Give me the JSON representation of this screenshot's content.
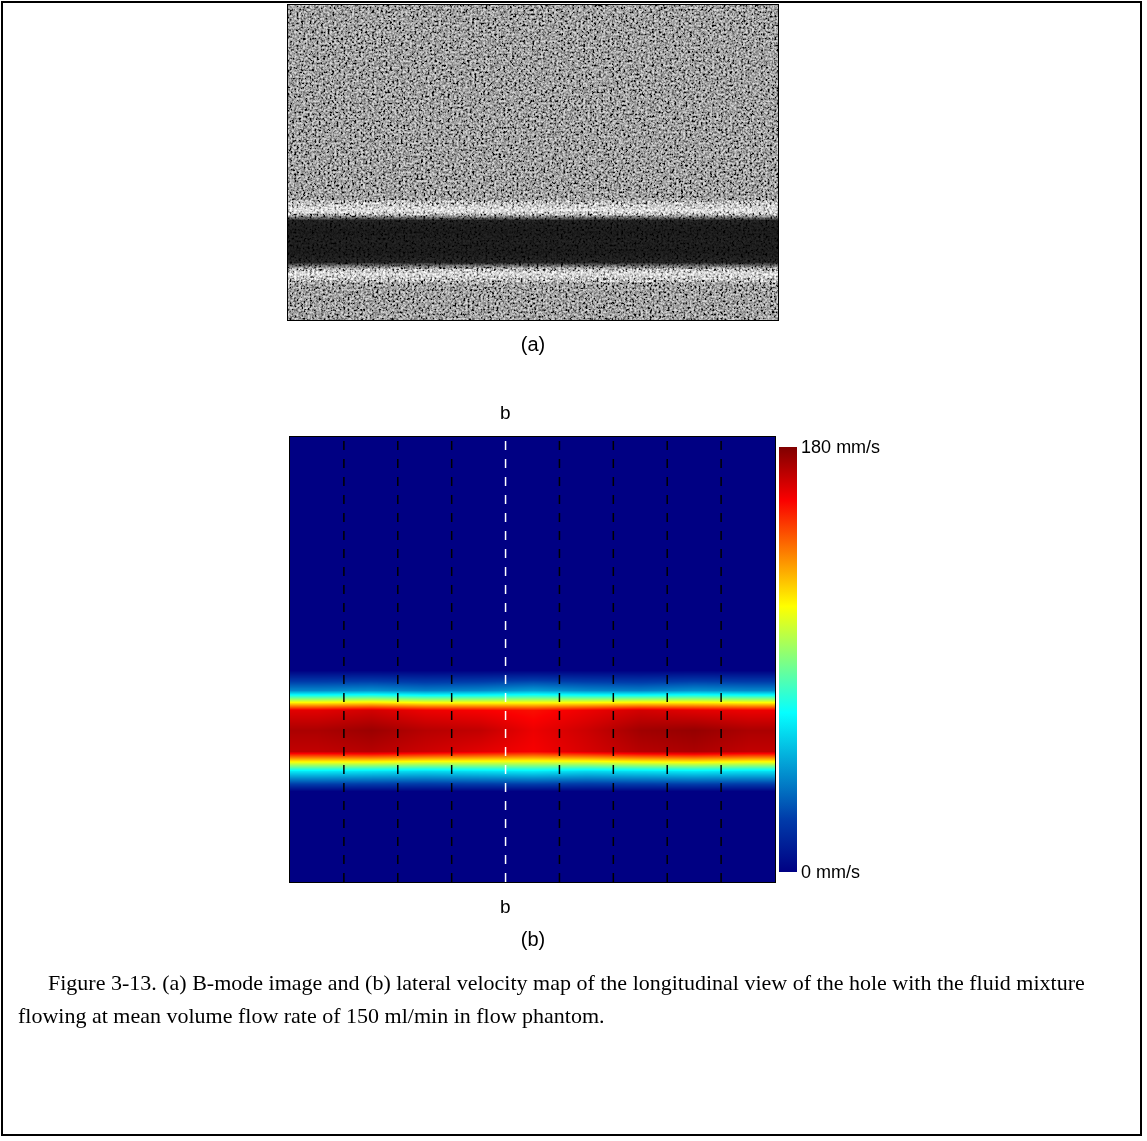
{
  "chart_data": [
    {
      "type": "heatmap",
      "panel_label": "(a)",
      "tick_labels": false,
      "color": "gray",
      "intensity_range": [
        0,
        255
      ],
      "rows": [
        110,
        110,
        110,
        110,
        110,
        110,
        110,
        110,
        110,
        110,
        110,
        110,
        110,
        110,
        110,
        110,
        110,
        110,
        110,
        200,
        22,
        18,
        20,
        18,
        24,
        190,
        110,
        110,
        110,
        110
      ]
    },
    {
      "type": "heatmap",
      "panel_label": "(b)",
      "tick_labels": false,
      "color": "jet",
      "xlim": [
        0,
        9
      ],
      "ylim": [
        22,
        0
      ],
      "segment_lines": [
        1,
        2,
        3,
        5,
        6,
        7,
        8
      ],
      "section_line": {
        "x": 4,
        "label": "b"
      },
      "z": [
        [
          0,
          0,
          0,
          0,
          0,
          0,
          0,
          0,
          0
        ],
        [
          0,
          0,
          0,
          0,
          0,
          0,
          0,
          0,
          0
        ],
        [
          0,
          0,
          0,
          0,
          0,
          0,
          0,
          0,
          0
        ],
        [
          0,
          0,
          0,
          0,
          0,
          0,
          0,
          0,
          0
        ],
        [
          0,
          0,
          0,
          0,
          0,
          0,
          0,
          0,
          0
        ],
        [
          0,
          0,
          0,
          0,
          0,
          0,
          0,
          0,
          0
        ],
        [
          0,
          0,
          0,
          0,
          0,
          0,
          0,
          0,
          0
        ],
        [
          0,
          0,
          0,
          0,
          0,
          0,
          0,
          0,
          0
        ],
        [
          0,
          0,
          0,
          0,
          0,
          0,
          0,
          0,
          0
        ],
        [
          0,
          0,
          0,
          0,
          0,
          0,
          0,
          0,
          0
        ],
        [
          0,
          0,
          0,
          0,
          0,
          0,
          0,
          0,
          0
        ],
        [
          0,
          0,
          0,
          0,
          0,
          0,
          0,
          0,
          0
        ],
        [
          40,
          42,
          38,
          40,
          45,
          40,
          38,
          42,
          40
        ],
        [
          162,
          165,
          160,
          158,
          155,
          160,
          165,
          162,
          160
        ],
        [
          172,
          175,
          170,
          168,
          160,
          166,
          174,
          176,
          172
        ],
        [
          168,
          170,
          166,
          162,
          158,
          164,
          170,
          172,
          168
        ],
        [
          62,
          60,
          58,
          60,
          62,
          58,
          60,
          62,
          60
        ],
        [
          0,
          0,
          0,
          0,
          0,
          0,
          0,
          0,
          0
        ],
        [
          0,
          0,
          0,
          0,
          0,
          0,
          0,
          0,
          0
        ],
        [
          0,
          0,
          0,
          0,
          0,
          0,
          0,
          0,
          0
        ],
        [
          0,
          0,
          0,
          0,
          0,
          0,
          0,
          0,
          0
        ],
        [
          0,
          0,
          0,
          0,
          0,
          0,
          0,
          0,
          0
        ]
      ],
      "colorbar": {
        "range": [
          0,
          180
        ],
        "ticks": [
          {
            "value": 0,
            "label": "0 mm/s"
          },
          {
            "value": 180,
            "label": "180 mm/s"
          }
        ]
      }
    }
  ],
  "caption": "Figure 3-13. (a) B-mode image and (b) lateral velocity map of the longitudinal view of the hole with the fluid mixture flowing at mean volume flow rate of 150 ml/min in flow phantom."
}
